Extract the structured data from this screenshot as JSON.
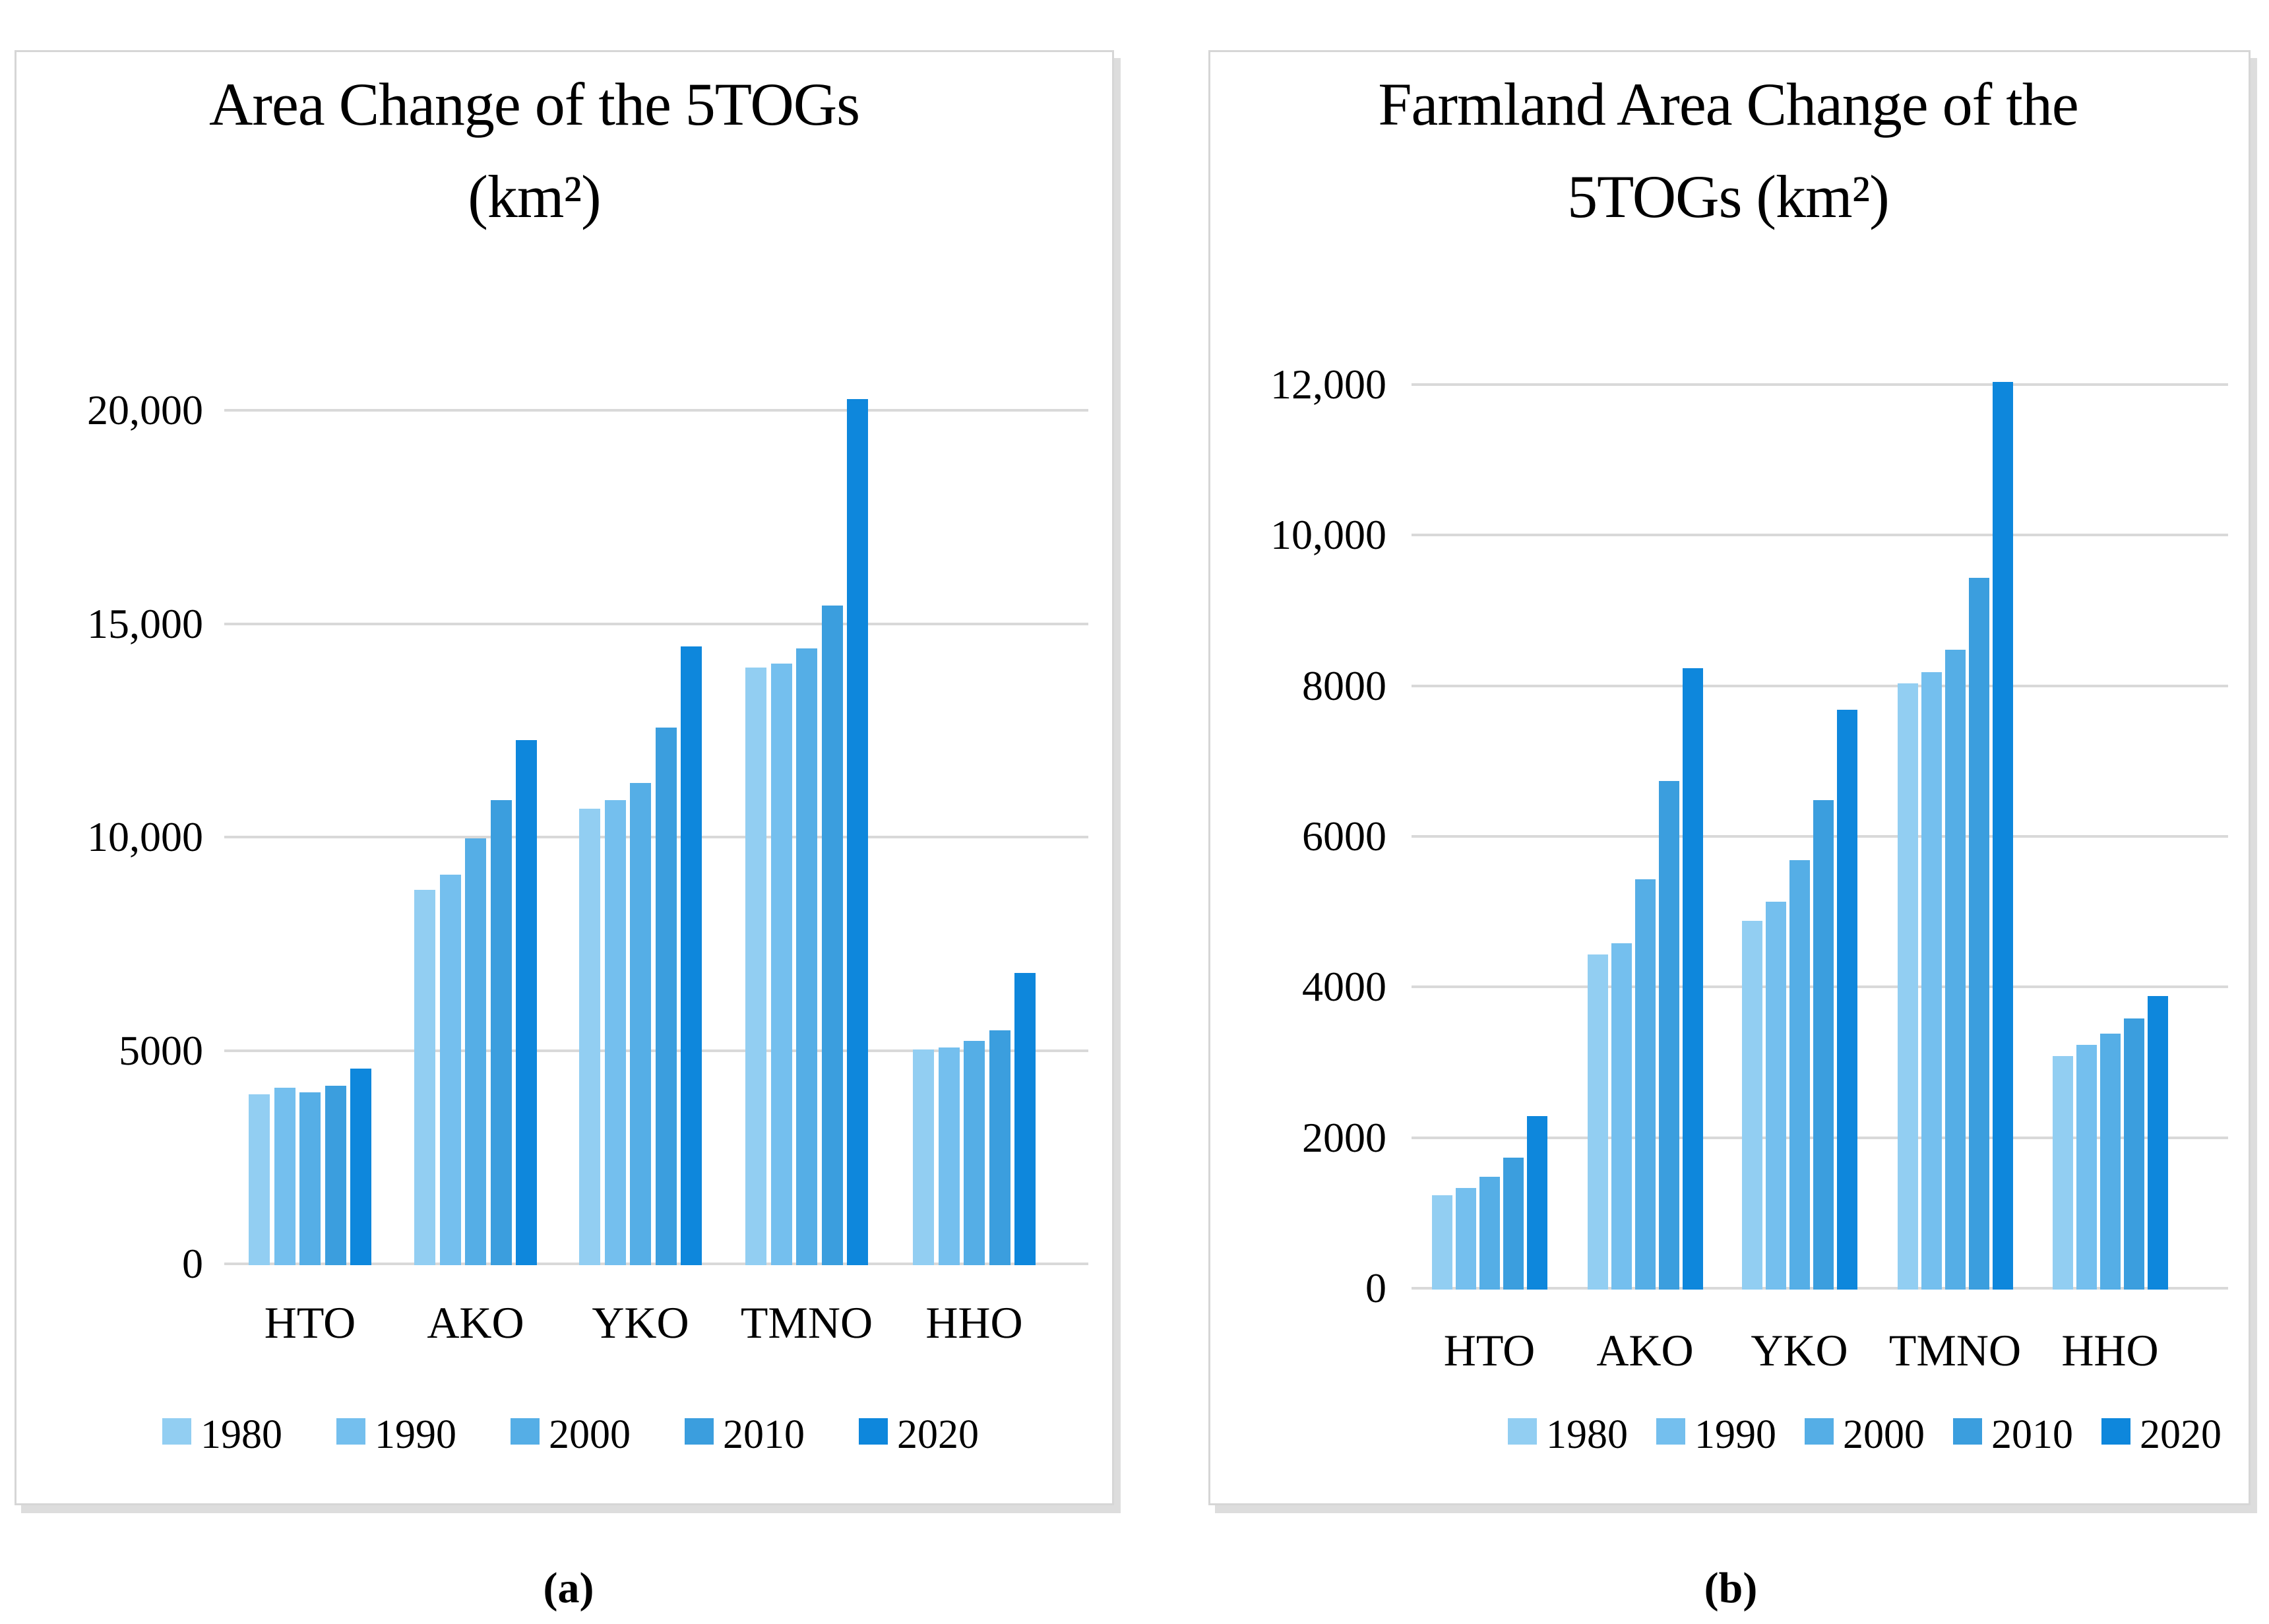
{
  "series_colors": [
    "#92CEF2",
    "#74BFEE",
    "#55AEE6",
    "#3B9EDE",
    "#0E87DC"
  ],
  "grid_color": "#D9D9D9",
  "captions": {
    "a": "(a)",
    "b": "(b)"
  },
  "legend": {
    "labels": [
      "1980",
      "1990",
      "2000",
      "2010",
      "2020"
    ],
    "position": "bottom"
  },
  "chart_data": [
    {
      "id": "a",
      "type": "bar",
      "title_line1": "Area Change of the 5TOGs",
      "title_line2": "(km²)",
      "categories": [
        "HTO",
        "AKO",
        "YKO",
        "TMNO",
        "HHO"
      ],
      "series": [
        {
          "name": "1980",
          "values": [
            4000,
            8800,
            10700,
            14000,
            5050
          ]
        },
        {
          "name": "1990",
          "values": [
            4150,
            9150,
            10900,
            14100,
            5100
          ]
        },
        {
          "name": "2000",
          "values": [
            4050,
            10000,
            11300,
            14450,
            5250
          ]
        },
        {
          "name": "2010",
          "values": [
            4200,
            10900,
            12600,
            15450,
            5500
          ]
        },
        {
          "name": "2020",
          "values": [
            4600,
            12300,
            14500,
            20300,
            6850
          ]
        }
      ],
      "ylim": [
        0,
        20000
      ],
      "grid": true,
      "yticks": [
        {
          "v": 0,
          "label": "0"
        },
        {
          "v": 5000,
          "label": "5000"
        },
        {
          "v": 10000,
          "label": "10,000"
        },
        {
          "v": 15000,
          "label": "15,000"
        },
        {
          "v": 20000,
          "label": "20,000"
        }
      ]
    },
    {
      "id": "b",
      "type": "bar",
      "title_line1": "Farmland Area Change of the",
      "title_line2": "5TOGs (km²)",
      "categories": [
        "HTO",
        "AKO",
        "YKO",
        "TMNO",
        "HHO"
      ],
      "series": [
        {
          "name": "1980",
          "values": [
            1250,
            4450,
            4900,
            8050,
            3100
          ]
        },
        {
          "name": "1990",
          "values": [
            1350,
            4600,
            5150,
            8200,
            3250
          ]
        },
        {
          "name": "2000",
          "values": [
            1500,
            5450,
            5700,
            8500,
            3400
          ]
        },
        {
          "name": "2010",
          "values": [
            1750,
            6750,
            6500,
            9450,
            3600
          ]
        },
        {
          "name": "2020",
          "values": [
            2300,
            8250,
            7700,
            12050,
            3900
          ]
        }
      ],
      "ylim": [
        0,
        12000
      ],
      "grid": true,
      "yticks": [
        {
          "v": 0,
          "label": "0"
        },
        {
          "v": 2000,
          "label": "2000"
        },
        {
          "v": 4000,
          "label": "4000"
        },
        {
          "v": 6000,
          "label": "6000"
        },
        {
          "v": 8000,
          "label": "8000"
        },
        {
          "v": 10000,
          "label": "10,000"
        },
        {
          "v": 12000,
          "label": "12,000"
        }
      ]
    }
  ]
}
